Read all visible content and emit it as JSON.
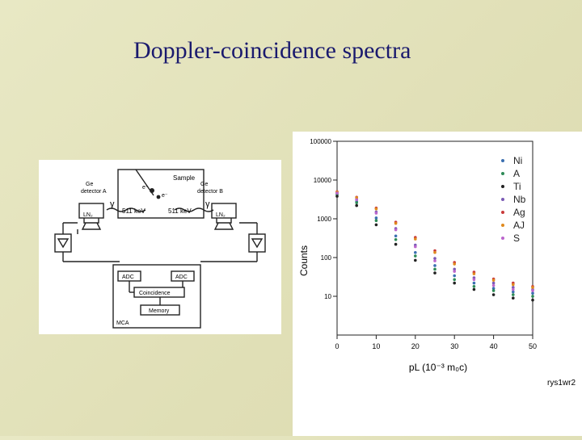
{
  "slide": {
    "title": "Doppler-coincidence spectra"
  },
  "diagram": {
    "sample": "Sample",
    "det_a": [
      "Ge",
      "detector A"
    ],
    "det_b": [
      "Ge",
      "detector B"
    ],
    "ln2_a": "LN₂",
    "ln2_b": "LN₂",
    "energy_left": "511 keV",
    "energy_right": "511 keV",
    "gamma": "γ",
    "e_plus": "e⁺",
    "e_minus": "e⁻",
    "adc_left": "ADC",
    "adc_right": "ADC",
    "coincidence": "Coincidence",
    "memory": "Memory",
    "mca": "MCA"
  },
  "chart_data": {
    "type": "scatter",
    "y_scale": "log",
    "xlim": [
      0,
      50
    ],
    "ylim": [
      1,
      100000
    ],
    "x_ticks": [
      0,
      10,
      20,
      30,
      40,
      50
    ],
    "x_tick_labels": [
      "0",
      "10",
      "20",
      "30",
      "40",
      "50"
    ],
    "y_ticks": [
      100000,
      10000,
      1000,
      100,
      10
    ],
    "y_tick_labels": [
      "100000",
      "10000",
      "1000",
      "100",
      "10"
    ],
    "ylabel": "Counts",
    "xlabel": "pL (10⁻³ m₀c)",
    "legend_position": "top-right",
    "series": [
      {
        "name": "Ni",
        "color": "#3a6fb0",
        "x": [
          0,
          5,
          10,
          15,
          20,
          25,
          30,
          35,
          40,
          45,
          50
        ],
        "y": [
          4500,
          2800,
          1050,
          360,
          135,
          62,
          34,
          22,
          16,
          13,
          12
        ]
      },
      {
        "name": "A",
        "color": "#2e8b57",
        "x": [
          0,
          5,
          10,
          15,
          20,
          25,
          30,
          35,
          40,
          45,
          50
        ],
        "y": [
          4200,
          2600,
          900,
          290,
          110,
          50,
          27,
          18,
          14,
          11,
          10
        ]
      },
      {
        "name": "Ti",
        "color": "#222222",
        "x": [
          0,
          5,
          10,
          15,
          20,
          25,
          30,
          35,
          40,
          45,
          50
        ],
        "y": [
          3800,
          2200,
          700,
          220,
          85,
          40,
          22,
          15,
          11,
          9,
          8
        ]
      },
      {
        "name": "Nb",
        "color": "#7a5ab5",
        "x": [
          0,
          5,
          10,
          15,
          20,
          25,
          30,
          35,
          40,
          45,
          50
        ],
        "y": [
          4700,
          3200,
          1500,
          560,
          210,
          95,
          50,
          30,
          22,
          17,
          15
        ]
      },
      {
        "name": "Ag",
        "color": "#c83a3a",
        "x": [
          0,
          5,
          10,
          15,
          20,
          25,
          30,
          35,
          40,
          45,
          50
        ],
        "y": [
          5000,
          3600,
          1900,
          820,
          330,
          150,
          75,
          42,
          28,
          22,
          18
        ]
      },
      {
        "name": "AJ",
        "color": "#e08a1e",
        "x": [
          0,
          5,
          10,
          15,
          20,
          25,
          30,
          35,
          40,
          45,
          50
        ],
        "y": [
          4900,
          3500,
          1800,
          760,
          300,
          135,
          68,
          38,
          26,
          20,
          17
        ]
      },
      {
        "name": "S",
        "color": "#bb66cc",
        "x": [
          0,
          5,
          10,
          15,
          20,
          25,
          30,
          35,
          40,
          45,
          50
        ],
        "y": [
          4600,
          3100,
          1400,
          520,
          190,
          82,
          44,
          27,
          19,
          15,
          14
        ]
      }
    ]
  },
  "footer": {
    "code": "rys1wr2"
  }
}
